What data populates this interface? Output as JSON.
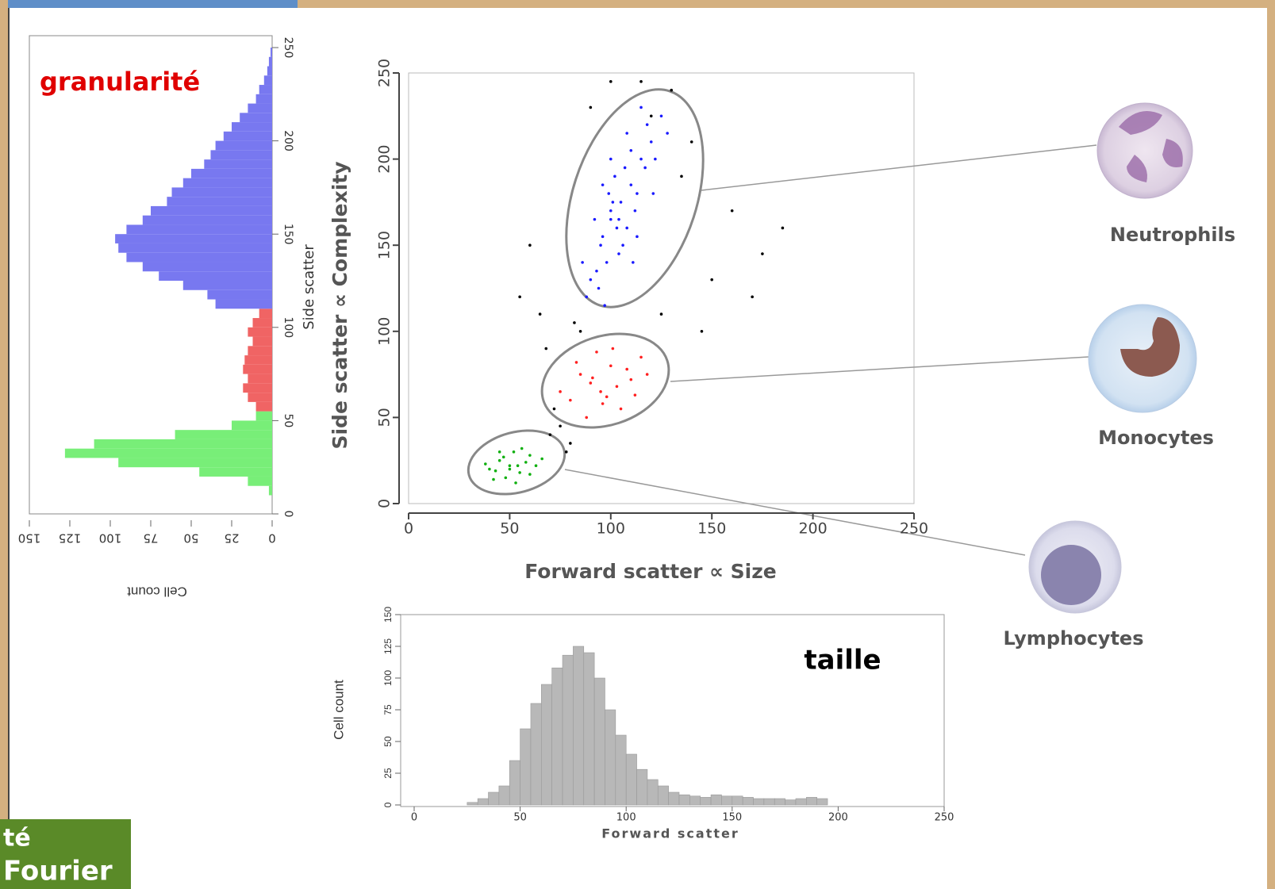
{
  "chart_data": [
    {
      "type": "histogram",
      "orientation": "horizontal",
      "xreverse": true,
      "annotation": "granularité",
      "xlabel": "Cell count",
      "ylabel": "Side scatter",
      "xlim": [
        0,
        150
      ],
      "xticks": [
        0,
        25,
        50,
        75,
        100,
        125,
        150
      ],
      "ylim": [
        0,
        250
      ],
      "yticks": [
        0,
        50,
        100,
        150,
        200,
        250
      ],
      "bins": [
        0,
        5,
        10,
        15,
        20,
        25,
        30,
        35,
        40,
        45,
        50,
        55,
        60,
        65,
        70,
        75,
        80,
        85,
        90,
        95,
        100,
        105,
        110,
        115,
        120,
        125,
        130,
        135,
        140,
        145,
        150,
        155,
        160,
        165,
        170,
        175,
        180,
        185,
        190,
        195,
        200,
        205,
        210,
        215,
        220,
        225,
        230,
        235,
        240,
        245,
        250
      ],
      "counts": [
        0,
        0,
        2,
        15,
        45,
        95,
        128,
        110,
        60,
        25,
        10,
        10,
        15,
        18,
        15,
        18,
        17,
        15,
        12,
        15,
        12,
        8,
        35,
        40,
        55,
        70,
        80,
        90,
        95,
        97,
        90,
        80,
        75,
        65,
        62,
        55,
        50,
        42,
        38,
        35,
        30,
        25,
        20,
        15,
        10,
        8,
        5,
        3,
        2,
        1
      ],
      "bar_colors": [
        "#78ee78",
        "#78ee78",
        "#78ee78",
        "#78ee78",
        "#78ee78",
        "#78ee78",
        "#78ee78",
        "#78ee78",
        "#78ee78",
        "#78ee78",
        "#78ee78",
        "#f06464",
        "#f06464",
        "#f06464",
        "#f06464",
        "#f06464",
        "#f06464",
        "#f06464",
        "#f06464",
        "#f06464",
        "#f06464",
        "#f06464",
        "#7878f0",
        "#7878f0",
        "#7878f0",
        "#7878f0",
        "#7878f0",
        "#7878f0",
        "#7878f0",
        "#7878f0",
        "#7878f0",
        "#7878f0",
        "#7878f0",
        "#7878f0",
        "#7878f0",
        "#7878f0",
        "#7878f0",
        "#7878f0",
        "#7878f0",
        "#7878f0",
        "#7878f0",
        "#7878f0",
        "#7878f0",
        "#7878f0",
        "#7878f0",
        "#7878f0",
        "#7878f0",
        "#7878f0",
        "#7878f0",
        "#7878f0"
      ]
    },
    {
      "type": "scatter",
      "xlabel": "Forward scatter ∝ Size",
      "ylabel": "Side scatter ∝ Complexity",
      "xlim": [
        0,
        250
      ],
      "xticks": [
        0,
        50,
        100,
        150,
        200,
        250
      ],
      "ylim": [
        0,
        250
      ],
      "yticks": [
        0,
        50,
        100,
        150,
        200,
        250
      ],
      "series": [
        {
          "name": "Neutrophils",
          "color": "#1a1aff",
          "x": [
            95,
            100,
            105,
            110,
            115,
            90,
            98,
            108,
            120,
            102,
            112,
            88,
            96,
            104,
            118,
            125,
            93,
            107,
            113,
            100,
            97,
            110,
            103,
            115,
            92,
            122,
            106,
            99,
            111,
            101,
            94,
            117,
            108,
            104,
            96,
            128,
            86,
            113,
            100,
            121
          ],
          "values": [
            150,
            165,
            175,
            185,
            200,
            130,
            140,
            160,
            210,
            190,
            170,
            120,
            155,
            145,
            220,
            225,
            135,
            195,
            180,
            170,
            115,
            205,
            160,
            230,
            165,
            200,
            150,
            180,
            140,
            175,
            125,
            195,
            215,
            165,
            185,
            215,
            140,
            155,
            200,
            180
          ]
        },
        {
          "name": "Monocytes",
          "color": "#ff2020",
          "x": [
            80,
            85,
            90,
            95,
            100,
            105,
            110,
            115,
            88,
            93,
            98,
            103,
            108,
            118,
            75,
            83,
            96,
            112,
            91,
            101
          ],
          "values": [
            60,
            75,
            70,
            65,
            80,
            55,
            72,
            85,
            50,
            88,
            62,
            68,
            78,
            75,
            65,
            82,
            58,
            63,
            73,
            90
          ]
        },
        {
          "name": "Lymphocytes",
          "color": "#10b010",
          "x": [
            40,
            45,
            50,
            55,
            60,
            48,
            52,
            58,
            43,
            63,
            47,
            53,
            38,
            56,
            50,
            66,
            45,
            60,
            42,
            54
          ],
          "values": [
            20,
            25,
            22,
            18,
            28,
            15,
            30,
            24,
            19,
            22,
            27,
            12,
            23,
            32,
            20,
            26,
            30,
            17,
            14,
            22
          ]
        },
        {
          "color": "#000000",
          "x": [
            70,
            75,
            80,
            65,
            60,
            130,
            140,
            150,
            160,
            175,
            185,
            55,
            85,
            90,
            145,
            125,
            100,
            78,
            68,
            135,
            170,
            120,
            115,
            72,
            82
          ],
          "values": [
            40,
            45,
            35,
            110,
            150,
            240,
            210,
            130,
            170,
            145,
            160,
            120,
            100,
            230,
            100,
            110,
            245,
            30,
            90,
            190,
            120,
            225,
            245,
            55,
            105
          ]
        }
      ]
    },
    {
      "type": "histogram",
      "orientation": "vertical",
      "color": "#b8b8b8",
      "annotation": "taille",
      "xlabel": "Forward scatter",
      "ylabel": "Cell count",
      "xlim": [
        0,
        250
      ],
      "xticks": [
        0,
        50,
        100,
        150,
        200,
        250
      ],
      "ylim": [
        0,
        150
      ],
      "yticks": [
        0,
        25,
        50,
        75,
        100,
        125,
        150
      ],
      "bins": [
        0,
        5,
        10,
        15,
        20,
        25,
        30,
        35,
        40,
        45,
        50,
        55,
        60,
        65,
        70,
        75,
        80,
        85,
        90,
        95,
        100,
        105,
        110,
        115,
        120,
        125,
        130,
        135,
        140,
        145,
        150,
        155,
        160,
        165,
        170,
        175,
        180,
        185,
        190,
        195,
        200,
        205,
        210,
        215,
        220,
        225,
        230,
        235,
        240,
        245,
        250
      ],
      "counts": [
        0,
        0,
        0,
        0,
        0,
        2,
        5,
        10,
        15,
        35,
        60,
        80,
        95,
        108,
        118,
        125,
        120,
        100,
        75,
        55,
        40,
        28,
        20,
        15,
        10,
        8,
        7,
        6,
        8,
        7,
        7,
        6,
        5,
        5,
        5,
        4,
        5,
        6,
        5,
        0,
        0,
        0,
        0,
        0,
        0,
        0,
        0,
        0,
        0,
        0
      ]
    }
  ],
  "logo": {
    "line1": "té",
    "line2": "Fourier"
  }
}
